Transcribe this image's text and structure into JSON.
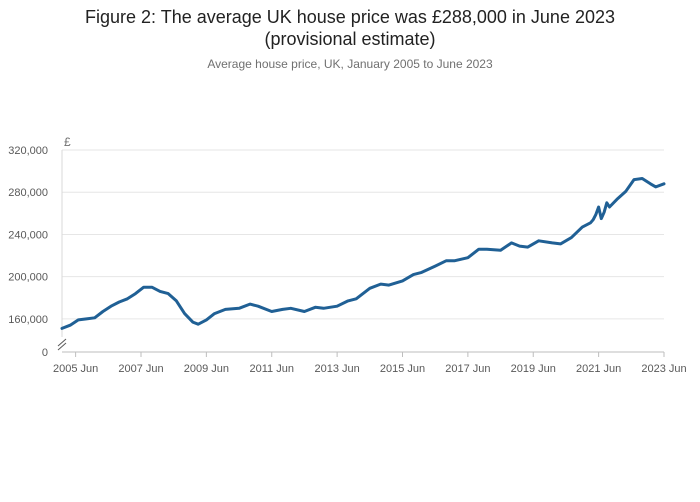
{
  "chart_data": {
    "type": "line",
    "title_line1": "Figure 2: The average UK house price was £288,000 in June 2023",
    "title_line2": "(provisional estimate)",
    "subtitle": "Average house price, UK, January 2005 to June 2023",
    "y_unit_label": "£",
    "xlabel": "",
    "ylabel": "",
    "ylim": [
      140000,
      320000
    ],
    "y_axis_break": true,
    "y_zero_label": "0",
    "y_ticks": [
      {
        "value": 160000,
        "label": "160,000"
      },
      {
        "value": 200000,
        "label": "200,000"
      },
      {
        "value": 240000,
        "label": "240,000"
      },
      {
        "value": 280000,
        "label": "280,000"
      },
      {
        "value": 320000,
        "label": "320,000"
      }
    ],
    "x_range": [
      "2005-01",
      "2023-06"
    ],
    "x_ticks": [
      {
        "date": "2005-06",
        "label": "2005 Jun"
      },
      {
        "date": "2007-06",
        "label": "2007 Jun"
      },
      {
        "date": "2009-06",
        "label": "2009 Jun"
      },
      {
        "date": "2011-06",
        "label": "2011 Jun"
      },
      {
        "date": "2013-06",
        "label": "2013 Jun"
      },
      {
        "date": "2015-06",
        "label": "2015 Jun"
      },
      {
        "date": "2017-06",
        "label": "2017 Jun"
      },
      {
        "date": "2019-06",
        "label": "2019 Jun"
      },
      {
        "date": "2021-06",
        "label": "2021 Jun"
      },
      {
        "date": "2023-06",
        "label": "2023 Jun"
      }
    ],
    "grid": "horizontal",
    "legend": "none",
    "series": [
      {
        "color": "#206095",
        "points": [
          [
            "2005-01",
            151000
          ],
          [
            "2005-04",
            154000
          ],
          [
            "2005-07",
            159000
          ],
          [
            "2005-10",
            160000
          ],
          [
            "2006-01",
            161000
          ],
          [
            "2006-04",
            167000
          ],
          [
            "2006-07",
            172000
          ],
          [
            "2006-10",
            176000
          ],
          [
            "2007-01",
            179000
          ],
          [
            "2007-04",
            184000
          ],
          [
            "2007-07",
            190000
          ],
          [
            "2007-10",
            190000
          ],
          [
            "2008-01",
            186000
          ],
          [
            "2008-04",
            184000
          ],
          [
            "2008-07",
            177000
          ],
          [
            "2008-10",
            165000
          ],
          [
            "2009-01",
            157000
          ],
          [
            "2009-03",
            155000
          ],
          [
            "2009-06",
            159000
          ],
          [
            "2009-09",
            165000
          ],
          [
            "2010-01",
            169000
          ],
          [
            "2010-06",
            170000
          ],
          [
            "2010-10",
            174000
          ],
          [
            "2011-01",
            172000
          ],
          [
            "2011-06",
            167000
          ],
          [
            "2011-10",
            169000
          ],
          [
            "2012-01",
            170000
          ],
          [
            "2012-06",
            167000
          ],
          [
            "2012-10",
            171000
          ],
          [
            "2013-01",
            170000
          ],
          [
            "2013-06",
            172000
          ],
          [
            "2013-10",
            177000
          ],
          [
            "2014-01",
            179000
          ],
          [
            "2014-06",
            189000
          ],
          [
            "2014-10",
            193000
          ],
          [
            "2015-01",
            192000
          ],
          [
            "2015-06",
            196000
          ],
          [
            "2015-10",
            202000
          ],
          [
            "2016-01",
            204000
          ],
          [
            "2016-06",
            210000
          ],
          [
            "2016-10",
            215000
          ],
          [
            "2017-01",
            215000
          ],
          [
            "2017-06",
            218000
          ],
          [
            "2017-10",
            226000
          ],
          [
            "2018-01",
            226000
          ],
          [
            "2018-06",
            225000
          ],
          [
            "2018-10",
            232000
          ],
          [
            "2019-01",
            229000
          ],
          [
            "2019-04",
            228000
          ],
          [
            "2019-08",
            234000
          ],
          [
            "2020-01",
            232000
          ],
          [
            "2020-04",
            231000
          ],
          [
            "2020-08",
            237000
          ],
          [
            "2020-12",
            247000
          ],
          [
            "2021-03",
            251000
          ],
          [
            "2021-04",
            254000
          ],
          [
            "2021-05",
            259000
          ],
          [
            "2021-06",
            266000
          ],
          [
            "2021-07",
            255000
          ],
          [
            "2021-08",
            261000
          ],
          [
            "2021-09",
            270000
          ],
          [
            "2021-10",
            266000
          ],
          [
            "2022-01",
            274000
          ],
          [
            "2022-04",
            281000
          ],
          [
            "2022-07",
            292000
          ],
          [
            "2022-10",
            293000
          ],
          [
            "2023-01",
            288000
          ],
          [
            "2023-03",
            285000
          ],
          [
            "2023-06",
            288000
          ]
        ]
      }
    ]
  }
}
